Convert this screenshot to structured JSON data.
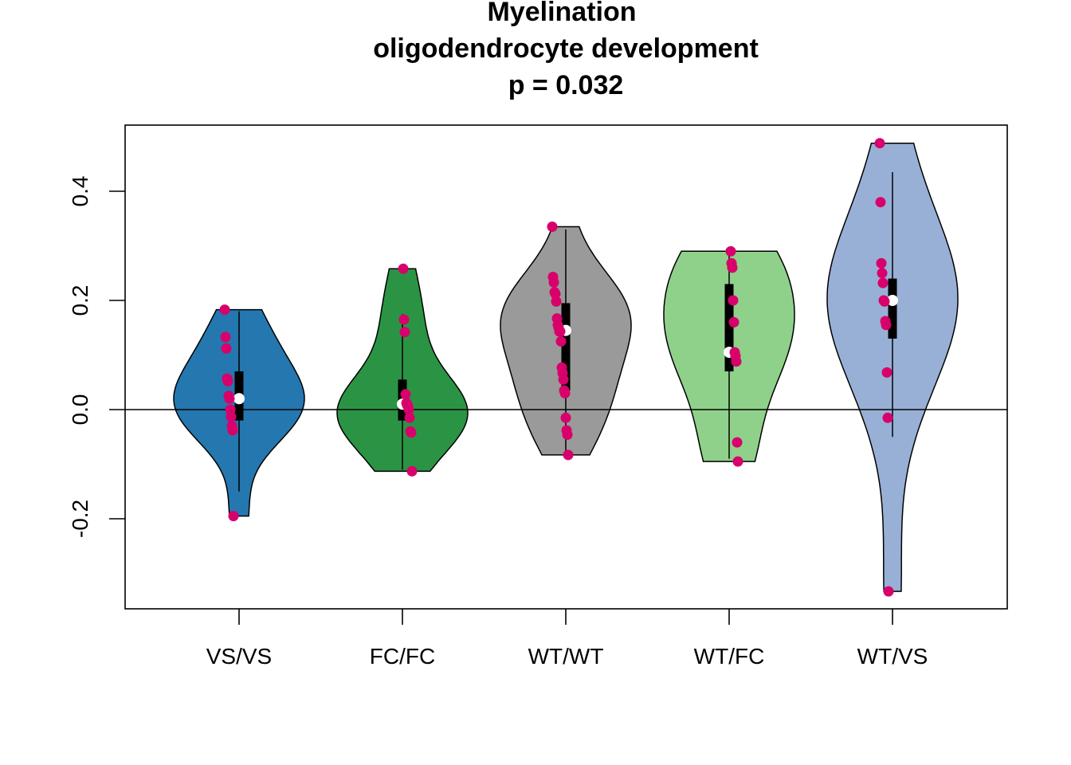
{
  "chart_data": {
    "type": "violin",
    "title": [
      "Myelination",
      "oligodendrocyte development",
      "p = 0.032"
    ],
    "xlabel": "",
    "ylabel": "",
    "ylim": [
      -0.36,
      0.52
    ],
    "yticks": [
      -0.2,
      0.0,
      0.2,
      0.4
    ],
    "ytick_labels": [
      "-0.2",
      "0.0",
      "0.2",
      "0.4"
    ],
    "reference_line": 0.0,
    "point_color": "#d8006b",
    "categories": [
      "VS/VS",
      "FC/FC",
      "WT/WT",
      "WT/FC",
      "WT/VS"
    ],
    "series": [
      {
        "fill": "#2577b0",
        "median": 0.02,
        "q1": -0.02,
        "q3": 0.07,
        "whisker_low": -0.15,
        "whisker_high": 0.18,
        "points": [
          0.183,
          0.133,
          0.112,
          0.057,
          0.052,
          0.025,
          0.02,
          0.0,
          -0.013,
          -0.03,
          -0.038,
          -0.195
        ]
      },
      {
        "fill": "#2b9444",
        "median": 0.01,
        "q1": -0.02,
        "q3": 0.055,
        "whisker_low": -0.11,
        "whisker_high": 0.175,
        "points": [
          0.258,
          0.165,
          0.142,
          0.028,
          0.012,
          0.008,
          0.007,
          0.0,
          -0.015,
          -0.04,
          -0.042,
          -0.113
        ]
      },
      {
        "fill": "#9a9a9a",
        "median": 0.145,
        "q1": 0.035,
        "q3": 0.195,
        "whisker_low": -0.08,
        "whisker_high": 0.33,
        "points": [
          0.335,
          0.243,
          0.233,
          0.215,
          0.212,
          0.198,
          0.167,
          0.155,
          0.15,
          0.143,
          0.143,
          0.125,
          0.077,
          0.067,
          0.055,
          0.035,
          0.03,
          -0.015,
          -0.038,
          -0.046,
          -0.083
        ]
      },
      {
        "fill": "#8fd18a",
        "median": 0.105,
        "q1": 0.07,
        "q3": 0.23,
        "whisker_low": -0.09,
        "whisker_high": 0.285,
        "points": [
          0.29,
          0.268,
          0.26,
          0.2,
          0.16,
          0.105,
          0.098,
          0.088,
          -0.06,
          -0.095
        ]
      },
      {
        "fill": "#98b0d6",
        "median": 0.2,
        "q1": 0.13,
        "q3": 0.24,
        "whisker_low": -0.05,
        "whisker_high": 0.435,
        "points": [
          0.488,
          0.38,
          0.268,
          0.25,
          0.232,
          0.2,
          0.198,
          0.162,
          0.155,
          0.068,
          -0.015,
          -0.333
        ]
      }
    ]
  }
}
